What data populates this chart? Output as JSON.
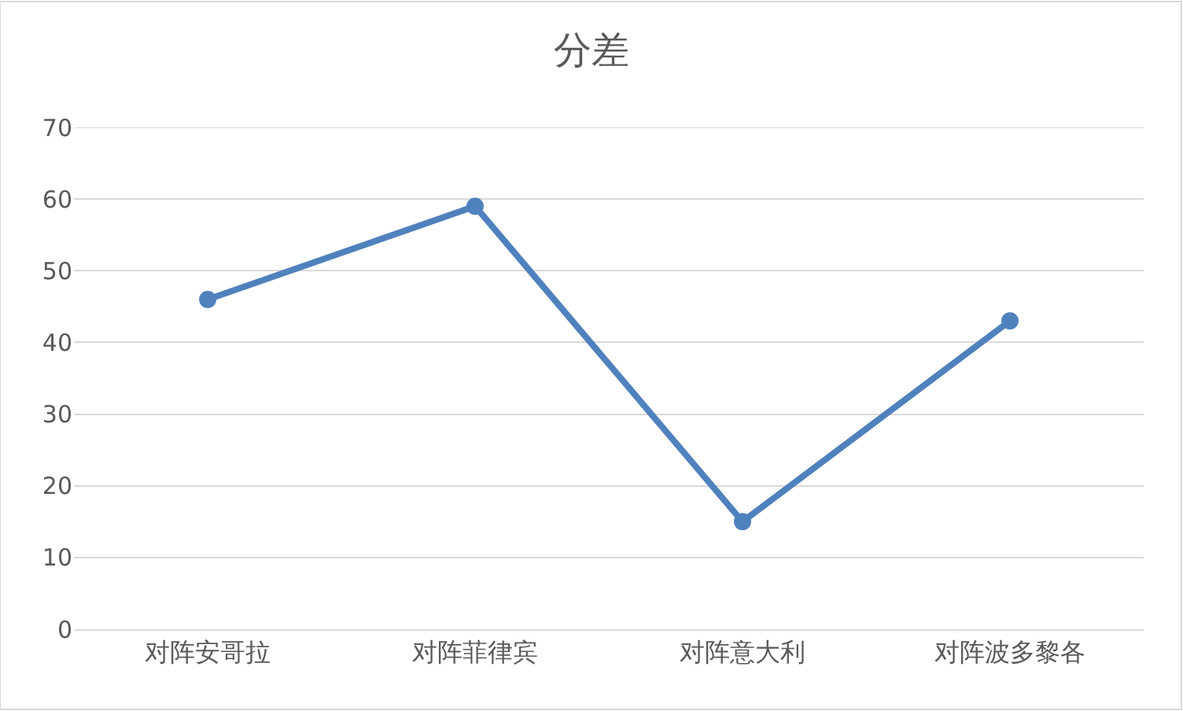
{
  "chart_data": {
    "type": "line",
    "title": "分差",
    "categories": [
      "对阵安哥拉",
      "对阵菲律宾",
      "对阵意大利",
      "对阵波多黎各"
    ],
    "series": [
      {
        "color": "#4f81bd",
        "values": [
          46,
          59,
          15,
          43
        ]
      }
    ],
    "ylim": [
      0,
      70
    ],
    "yticks": [
      0,
      10,
      20,
      30,
      40,
      50,
      60,
      70
    ],
    "grid": "y",
    "marker": "circle",
    "line_style": "solid"
  }
}
